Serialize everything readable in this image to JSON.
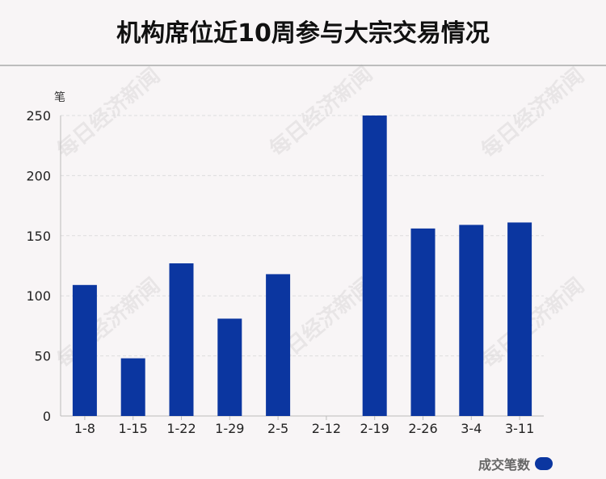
{
  "chart_data": {
    "type": "bar",
    "title": "机构席位近10周参与大宗交易情况",
    "ylabel": "笔",
    "categories": [
      "1-8",
      "1-15",
      "1-22",
      "1-29",
      "2-5",
      "2-12",
      "2-19",
      "2-26",
      "3-4",
      "3-11"
    ],
    "series": [
      {
        "name": "成交笔数",
        "values": [
          109,
          48,
          127,
          81,
          118,
          0,
          250,
          156,
          159,
          161
        ]
      }
    ],
    "ylim": [
      0,
      250
    ],
    "yticks": [
      0,
      50,
      100,
      150,
      200,
      250
    ],
    "grid": true,
    "legend": "bottom-right"
  },
  "colors": {
    "bar": "#0b36a0",
    "grid": "#dddddd",
    "axis": "#bbbbbb"
  },
  "watermark_text": "每日经济新闻"
}
